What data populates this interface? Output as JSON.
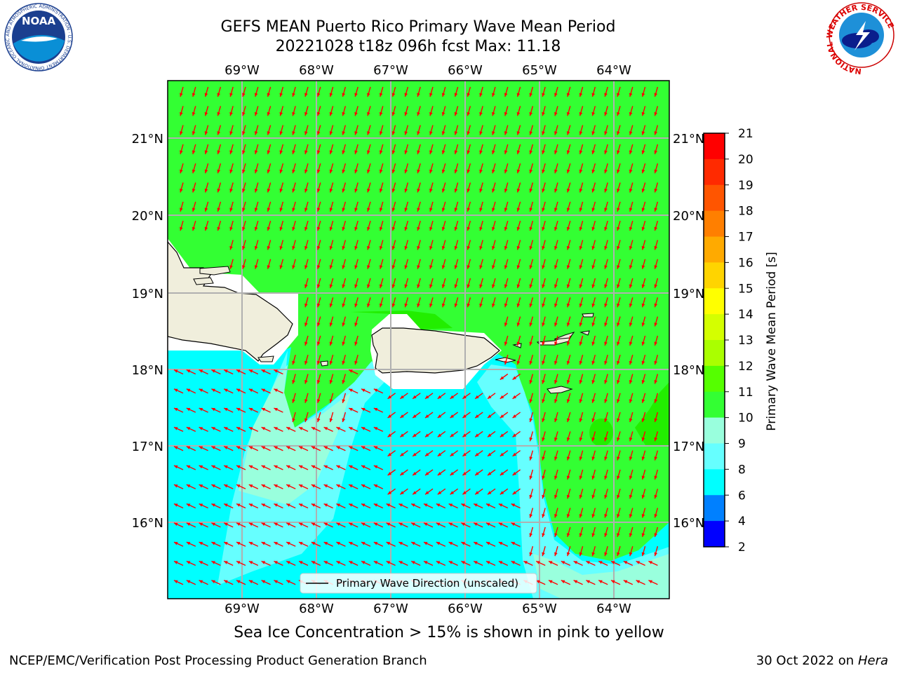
{
  "title": {
    "line1": "GEFS MEAN Puerto Rico Primary Wave Mean Period",
    "line2": "20221028 t18z 096h fcst   Max: 11.18"
  },
  "map": {
    "lon_top_labels": [
      "69°W",
      "68°W",
      "67°W",
      "66°W",
      "65°W",
      "64°W"
    ],
    "lon_bottom_labels": [
      "69°W",
      "68°W",
      "67°W",
      "66°W",
      "65°W",
      "64°W"
    ],
    "lat_left_labels": [
      "21°N",
      "20°N",
      "19°N",
      "18°N",
      "17°N",
      "16°N"
    ],
    "lat_right_labels": [
      "21°N",
      "20°N",
      "19°N",
      "18°N",
      "17°N",
      "16°N"
    ],
    "legend_label": "Primary Wave Direction (unscaled)",
    "arrow_color": "#ff0000",
    "land_color": "#f0eedc",
    "field_colors": {
      "green": "#33ff33",
      "cyan": "#00ffff",
      "light_cyan": "#66ffff",
      "aqua": "#99ffdd",
      "dark_green": "#22ee00"
    }
  },
  "colorbar": {
    "label": "Primary Wave Mean Period [s]",
    "ticks": [
      "21",
      "20",
      "19",
      "18",
      "17",
      "16",
      "15",
      "14",
      "13",
      "12",
      "11",
      "10",
      "9",
      "8",
      "6",
      "4",
      "2"
    ],
    "colors": [
      "#ff0000",
      "#ff2a00",
      "#ff5500",
      "#ff7f00",
      "#ffaa00",
      "#ffd400",
      "#ffff00",
      "#d4ff00",
      "#aaff00",
      "#55ff00",
      "#33ff33",
      "#99ffdd",
      "#66ffff",
      "#00ffff",
      "#0080ff",
      "#0000ff"
    ]
  },
  "caption": "Sea Ice Concentration > 15% is shown in pink to yellow",
  "footer": {
    "left": "NCEP/EMC/Verification Post Processing Product Generation Branch",
    "right_prefix": "30 Oct 2022 on ",
    "right_host": "Hera"
  },
  "logos": {
    "noaa_text": "NOAA",
    "noaa_ring": "NATIONAL OCEANIC AND ATMOSPHERIC ADMINISTRATION · U.S. DEPARTMENT OF COMMERCE",
    "nws_ring": "NATIONAL WEATHER SERVICE"
  }
}
